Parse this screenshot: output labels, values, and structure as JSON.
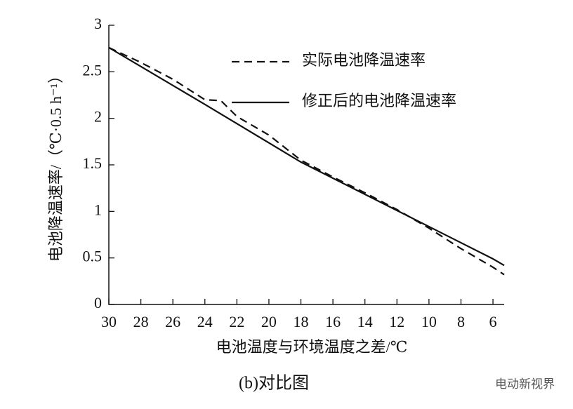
{
  "chart_data": {
    "type": "line",
    "x_label": "电池温度与环境温度之差/℃",
    "y_label": "电池降温速率/（℃·0.5 h⁻¹）",
    "caption": "(b)对比图",
    "watermark": "电动新视界",
    "xlim": [
      30,
      5.3
    ],
    "ylim": [
      0,
      3
    ],
    "xticks": [
      30,
      28,
      26,
      24,
      22,
      20,
      18,
      16,
      14,
      12,
      10,
      8,
      6
    ],
    "yticks": [
      0,
      0.5,
      1,
      1.5,
      2,
      2.5,
      3
    ],
    "legend": "upper right",
    "series": [
      {
        "name": "实际电池降温速率",
        "color": "#111111",
        "dash": "dashed",
        "x": [
          30,
          28,
          26,
          24,
          23,
          22,
          20,
          18,
          16,
          14,
          12,
          10,
          8,
          6,
          5.3
        ],
        "values": [
          2.76,
          2.6,
          2.42,
          2.2,
          2.19,
          2.02,
          1.82,
          1.55,
          1.37,
          1.2,
          1.02,
          0.82,
          0.6,
          0.4,
          0.32
        ]
      },
      {
        "name": "修正后的电池降温速率",
        "color": "#111111",
        "dash": "solid",
        "x": [
          30,
          24,
          18,
          12,
          6,
          5.3
        ],
        "values": [
          2.76,
          2.15,
          1.53,
          1.01,
          0.49,
          0.42
        ]
      }
    ]
  }
}
